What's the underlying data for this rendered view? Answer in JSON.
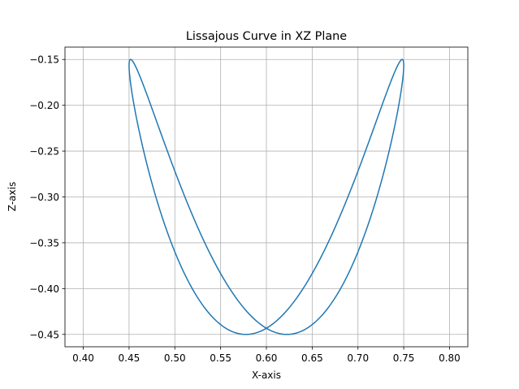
{
  "chart_data": {
    "type": "line",
    "title": "Lissajous Curve in XZ Plane",
    "xlabel": "X-axis",
    "ylabel": "Z-axis",
    "xlim": [
      0.38,
      0.82
    ],
    "ylim": [
      -0.4635,
      -0.1365
    ],
    "xticks": [
      0.4,
      0.45,
      0.5,
      0.55,
      0.6,
      0.65,
      0.7,
      0.75,
      0.8
    ],
    "xtick_labels": [
      "0.40",
      "0.45",
      "0.50",
      "0.55",
      "0.60",
      "0.65",
      "0.70",
      "0.75",
      "0.80"
    ],
    "yticks": [
      -0.45,
      -0.4,
      -0.35,
      -0.3,
      -0.25,
      -0.2,
      -0.15
    ],
    "ytick_labels": [
      "−0.45",
      "−0.40",
      "−0.35",
      "−0.30",
      "−0.25",
      "−0.20",
      "−0.15"
    ],
    "grid": true,
    "series": [
      {
        "color": "#1f77b4",
        "curve": {
          "x_center": 0.6,
          "x_amplitude": 0.15,
          "x_frequency": 1,
          "z_center": -0.3,
          "z_amplitude": 0.15,
          "z_frequency": 2,
          "z_phase": 0.3,
          "samples": 400
        }
      }
    ]
  }
}
